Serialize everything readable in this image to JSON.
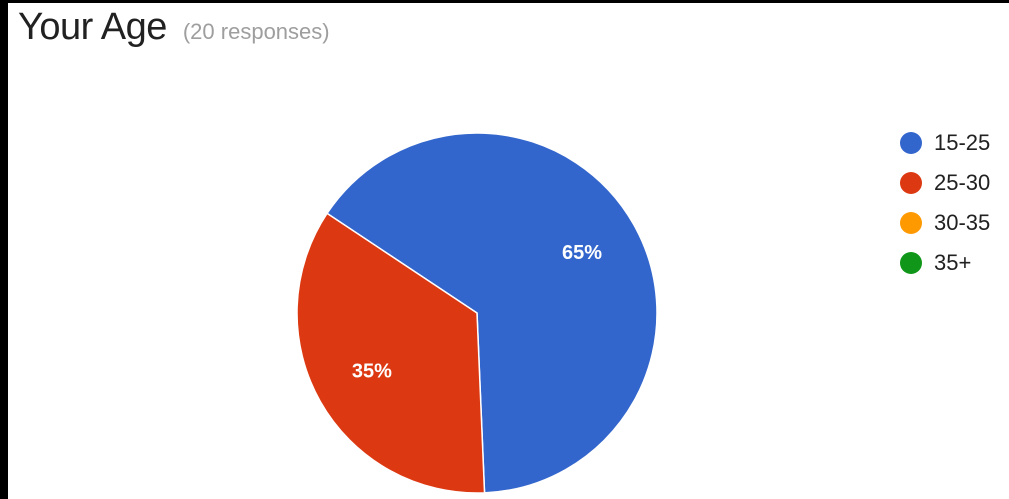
{
  "header": {
    "title": "Your Age",
    "responses": "(20 responses)"
  },
  "chart_data": {
    "type": "pie",
    "categories": [
      "15-25",
      "25-30",
      "30-35",
      "35+"
    ],
    "values": [
      65,
      35,
      0,
      0
    ],
    "data_labels": [
      "65%",
      "35%",
      "",
      ""
    ],
    "colors": [
      "#3366cc",
      "#dc3912",
      "#ff9900",
      "#109618"
    ],
    "legend_position": "right"
  }
}
